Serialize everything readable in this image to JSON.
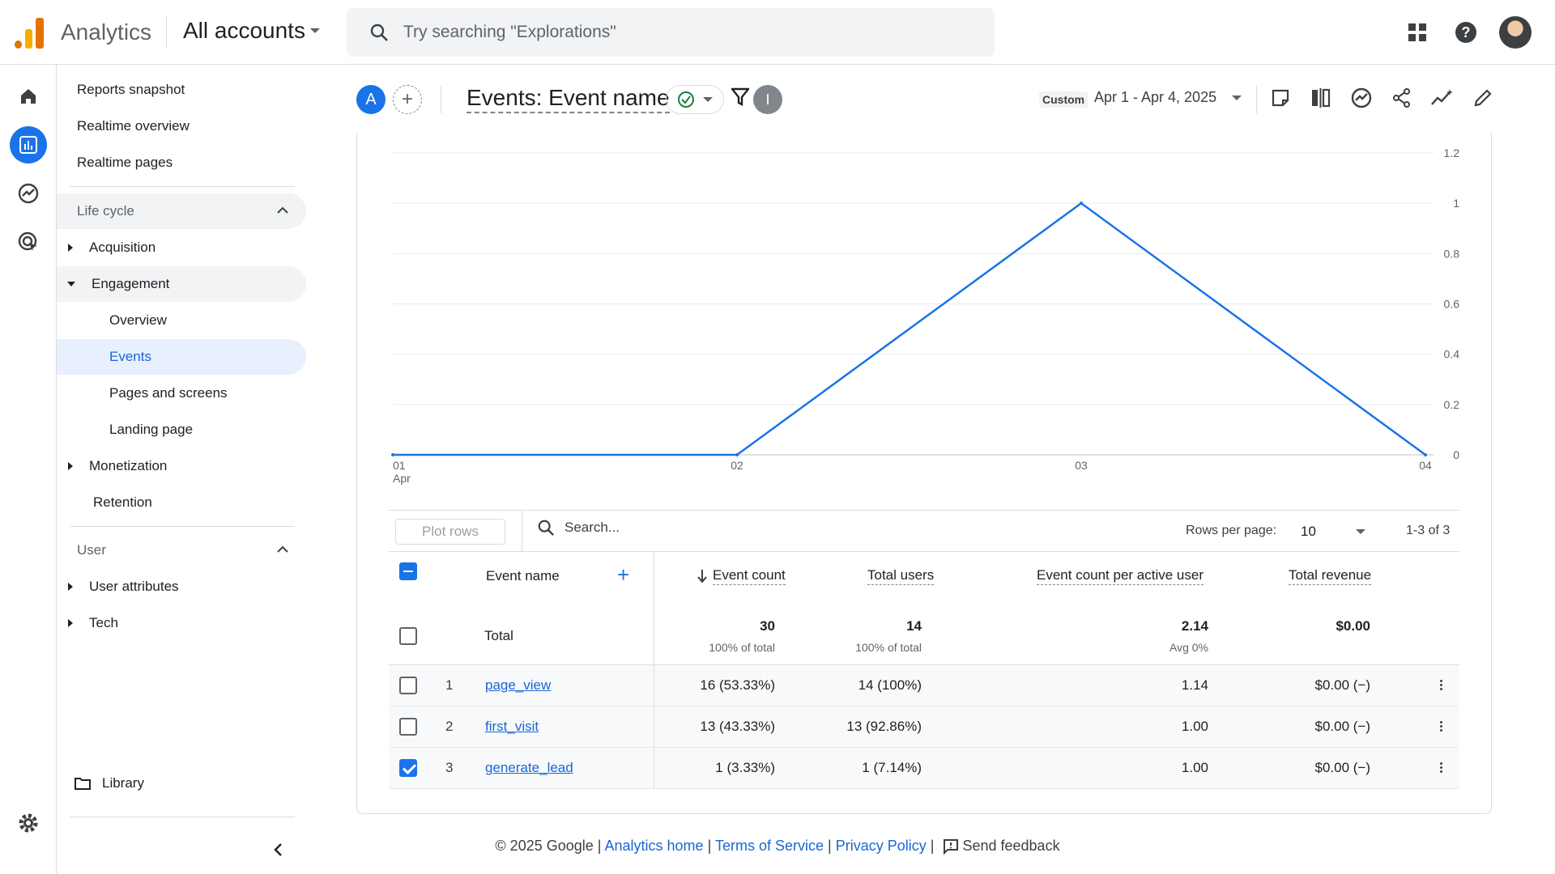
{
  "topbar": {
    "app_name": "Analytics",
    "account": "All accounts",
    "search_placeholder": "Try searching \"Explorations\""
  },
  "nav": {
    "reports_snapshot": "Reports snapshot",
    "realtime_overview": "Realtime overview",
    "realtime_pages": "Realtime pages",
    "life_cycle": "Life cycle",
    "acquisition": "Acquisition",
    "engagement": "Engagement",
    "overview": "Overview",
    "events": "Events",
    "pages_and_screens": "Pages and screens",
    "landing_page": "Landing page",
    "monetization": "Monetization",
    "retention": "Retention",
    "user": "User",
    "user_attributes": "User attributes",
    "tech": "Tech",
    "library": "Library"
  },
  "header": {
    "comparison_chip": "A",
    "add_comparison": "+",
    "title": "Events: Event name",
    "filter_badge": "I",
    "date_label": "Custom",
    "date_range": "Apr 1 - Apr 4, 2025"
  },
  "chart_data": {
    "type": "line",
    "x": [
      "01\nApr",
      "02",
      "03",
      "04"
    ],
    "x_tick_labels": [
      {
        "day": "01",
        "month": "Apr"
      },
      {
        "day": "02",
        "month": ""
      },
      {
        "day": "03",
        "month": ""
      },
      {
        "day": "04",
        "month": ""
      }
    ],
    "series": [
      {
        "values": [
          0,
          0,
          1,
          0
        ]
      }
    ],
    "y_ticks": [
      "0",
      "0.2",
      "0.4",
      "0.6",
      "0.8",
      "1",
      "1.2"
    ],
    "ylim": [
      0,
      1.2
    ],
    "line_color": "#1a73e8",
    "grid": true,
    "y_axis_side": "right"
  },
  "table": {
    "plot_rows": "Plot rows",
    "search_placeholder": "Search...",
    "rows_per_page_label": "Rows per page:",
    "rows_per_page": "10",
    "pagination": "1-3 of 3",
    "headers": {
      "event_name": "Event name",
      "event_count": "Event count",
      "total_users": "Total users",
      "event_count_per_user": "Event count per active user",
      "total_revenue": "Total revenue"
    },
    "total": {
      "label": "Total",
      "event_count": "30",
      "event_count_sub": "100% of total",
      "total_users": "14",
      "total_users_sub": "100% of total",
      "per_user": "2.14",
      "per_user_sub": "Avg 0%",
      "revenue": "$0.00"
    },
    "rows": [
      {
        "index": "1",
        "name": "page_view",
        "event_count": "16 (53.33%)",
        "total_users": "14 (100%)",
        "per_user": "1.14",
        "revenue": "$0.00 (−)",
        "checked": false
      },
      {
        "index": "2",
        "name": "first_visit",
        "event_count": "13 (43.33%)",
        "total_users": "13 (92.86%)",
        "per_user": "1.00",
        "revenue": "$0.00 (−)",
        "checked": false
      },
      {
        "index": "3",
        "name": "generate_lead",
        "event_count": "1 (3.33%)",
        "total_users": "1 (7.14%)",
        "per_user": "1.00",
        "revenue": "$0.00 (−)",
        "checked": true
      }
    ]
  },
  "footer": {
    "copyright": "© 2025 Google",
    "analytics_home": "Analytics home",
    "terms": "Terms of Service",
    "privacy": "Privacy Policy",
    "feedback": "Send feedback",
    "sep": "|"
  },
  "colors": {
    "accent": "#1a73e8",
    "logo_orange": "#f9ab00",
    "logo_dark_orange": "#e37400"
  }
}
